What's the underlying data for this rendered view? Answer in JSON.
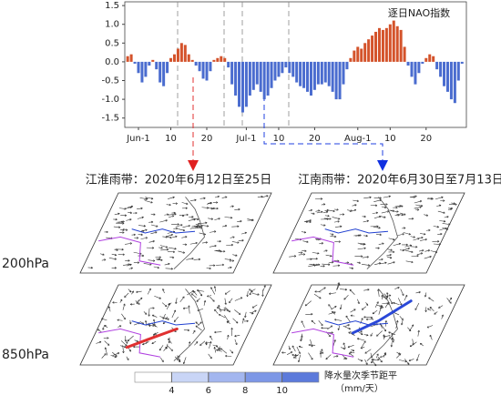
{
  "chart_data": {
    "type": "bar",
    "legend_label": "逐日NAO指数",
    "categories": [
      null,
      null,
      null,
      "Jun-1",
      null,
      null,
      null,
      null,
      null,
      null,
      null,
      null,
      "10",
      null,
      null,
      null,
      null,
      null,
      null,
      null,
      null,
      null,
      "20",
      null,
      null,
      null,
      null,
      null,
      null,
      null,
      null,
      null,
      null,
      "Jul-1",
      null,
      null,
      null,
      null,
      null,
      null,
      null,
      null,
      "10",
      null,
      null,
      null,
      null,
      null,
      null,
      null,
      null,
      null,
      "20",
      null,
      null,
      null,
      null,
      null,
      null,
      null,
      null,
      null,
      null,
      null,
      "Aug-1",
      null,
      null,
      null,
      null,
      null,
      null,
      null,
      null,
      "10",
      null,
      null,
      null,
      null,
      null,
      null,
      null,
      null,
      null,
      "20",
      null,
      null,
      null,
      null,
      null,
      null,
      null,
      null,
      null,
      null
    ],
    "values": [
      0.15,
      0.2,
      -0.05,
      -0.3,
      -0.55,
      -0.4,
      -0.1,
      0.05,
      -0.2,
      -0.55,
      -0.65,
      -0.3,
      0.1,
      0.2,
      0.35,
      0.5,
      0.45,
      0.2,
      0.05,
      -0.1,
      -0.25,
      -0.45,
      -0.5,
      -0.25,
      0.05,
      0.1,
      0.15,
      0.1,
      -0.15,
      -0.6,
      -0.9,
      -1.2,
      -1.35,
      -1.2,
      -0.9,
      -0.75,
      -0.6,
      -0.8,
      -1.0,
      -0.9,
      -0.7,
      -0.5,
      -0.4,
      -0.3,
      -0.15,
      -0.3,
      -0.4,
      -0.55,
      -0.65,
      -0.7,
      -0.8,
      -0.9,
      -0.75,
      -0.6,
      -0.6,
      -0.55,
      -0.65,
      -0.8,
      -1.0,
      -1.0,
      -0.6,
      -0.2,
      0.1,
      0.3,
      0.4,
      0.35,
      0.5,
      0.6,
      0.7,
      0.8,
      0.9,
      0.85,
      0.9,
      1.0,
      1.1,
      0.95,
      0.85,
      0.4,
      -0.1,
      -0.4,
      -0.6,
      -0.3,
      -0.05,
      0.1,
      0.2,
      0.15,
      -0.2,
      -0.4,
      -0.65,
      -0.8,
      -1.0,
      -1.1,
      -0.5,
      -0.05
    ],
    "positive_color": "#d4532b",
    "negative_color": "#4a6ccf",
    "ylim": [
      -1.75,
      1.6
    ],
    "yticks": [
      {
        "value": -1.5,
        "label": "-1.5"
      },
      {
        "value": -1.0,
        "label": "-1.0"
      },
      -0.5,
      {
        "value": 0,
        "label": "0.0"
      },
      0.5,
      {
        "value": 1.0,
        "label": "1.0"
      },
      1.5
    ]
  },
  "panels": {
    "titles": [
      "江淮雨带：2020年6月12日至25日",
      "江南雨带：2020年6月30日至7月13日"
    ],
    "levels": [
      "200hPa",
      "850hPa"
    ]
  },
  "colorbar": {
    "range": [
      2,
      12
    ],
    "ticks": [
      4,
      6,
      8,
      10
    ],
    "colors": [
      "#ffffff",
      "#c9d5f6",
      "#a3b6ef",
      "#7d97e6",
      "#5c7adb"
    ],
    "label": "降水量次季节距平",
    "unit": "（mm/天）"
  }
}
